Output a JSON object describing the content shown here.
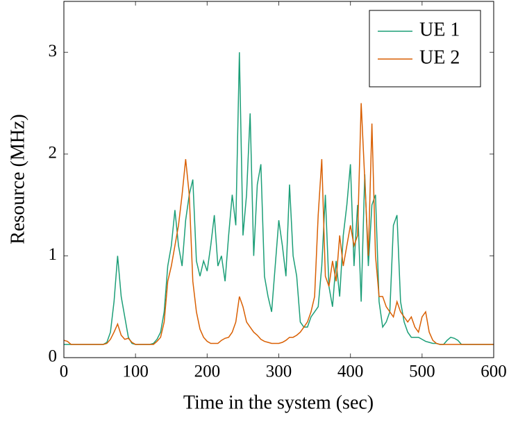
{
  "chart_data": {
    "type": "line",
    "xlabel": "Time in the system (sec)",
    "ylabel": "Resource (MHz)",
    "x": [
      0,
      5,
      10,
      15,
      20,
      25,
      30,
      35,
      40,
      45,
      50,
      55,
      60,
      65,
      70,
      75,
      80,
      85,
      90,
      95,
      100,
      105,
      110,
      115,
      120,
      125,
      130,
      135,
      140,
      145,
      150,
      155,
      160,
      165,
      170,
      175,
      180,
      185,
      190,
      195,
      200,
      205,
      210,
      215,
      220,
      225,
      230,
      235,
      240,
      245,
      250,
      255,
      260,
      265,
      270,
      275,
      280,
      285,
      290,
      295,
      300,
      305,
      310,
      315,
      320,
      325,
      330,
      335,
      340,
      345,
      350,
      355,
      360,
      365,
      370,
      375,
      380,
      385,
      390,
      395,
      400,
      405,
      410,
      415,
      420,
      425,
      430,
      435,
      440,
      445,
      450,
      455,
      460,
      465,
      470,
      475,
      480,
      485,
      490,
      495,
      500,
      505,
      510,
      515,
      520,
      525,
      530,
      535,
      540,
      545,
      550,
      555,
      560,
      565,
      570,
      575,
      580,
      585,
      590,
      595,
      600
    ],
    "series": [
      {
        "name": "UE 1",
        "color": "#1b9e77",
        "values": [
          0.13,
          0.13,
          0.13,
          0.13,
          0.13,
          0.13,
          0.13,
          0.13,
          0.13,
          0.13,
          0.13,
          0.13,
          0.15,
          0.25,
          0.55,
          1.0,
          0.6,
          0.4,
          0.2,
          0.14,
          0.13,
          0.13,
          0.13,
          0.13,
          0.13,
          0.14,
          0.18,
          0.25,
          0.45,
          0.9,
          1.1,
          1.45,
          1.1,
          0.9,
          1.35,
          1.6,
          1.75,
          0.95,
          0.8,
          0.95,
          0.85,
          1.1,
          1.4,
          0.9,
          1.0,
          0.75,
          1.2,
          1.6,
          1.3,
          3.0,
          1.2,
          1.6,
          2.4,
          1.0,
          1.7,
          1.9,
          0.8,
          0.6,
          0.45,
          0.9,
          1.35,
          1.1,
          0.8,
          1.7,
          1.0,
          0.8,
          0.35,
          0.3,
          0.3,
          0.4,
          0.45,
          0.5,
          0.9,
          1.6,
          0.7,
          0.5,
          0.95,
          0.6,
          1.2,
          1.5,
          1.9,
          0.9,
          1.5,
          0.55,
          1.8,
          0.9,
          1.5,
          1.6,
          0.55,
          0.3,
          0.35,
          0.45,
          1.3,
          1.4,
          0.55,
          0.35,
          0.25,
          0.2,
          0.2,
          0.2,
          0.18,
          0.16,
          0.15,
          0.14,
          0.14,
          0.13,
          0.13,
          0.17,
          0.2,
          0.19,
          0.17,
          0.13,
          0.13,
          0.13,
          0.13,
          0.13,
          0.13,
          0.13,
          0.13,
          0.13,
          0.13
        ]
      },
      {
        "name": "UE 2",
        "color": "#d95f02",
        "values": [
          0.17,
          0.16,
          0.13,
          0.13,
          0.13,
          0.13,
          0.13,
          0.13,
          0.13,
          0.13,
          0.13,
          0.13,
          0.14,
          0.18,
          0.25,
          0.33,
          0.22,
          0.18,
          0.19,
          0.15,
          0.13,
          0.13,
          0.13,
          0.13,
          0.13,
          0.13,
          0.16,
          0.2,
          0.35,
          0.75,
          0.9,
          1.1,
          1.3,
          1.6,
          1.95,
          1.6,
          0.75,
          0.45,
          0.28,
          0.2,
          0.16,
          0.14,
          0.14,
          0.14,
          0.17,
          0.19,
          0.2,
          0.25,
          0.35,
          0.6,
          0.5,
          0.35,
          0.3,
          0.25,
          0.22,
          0.18,
          0.16,
          0.15,
          0.14,
          0.14,
          0.14,
          0.15,
          0.17,
          0.2,
          0.2,
          0.22,
          0.25,
          0.3,
          0.35,
          0.45,
          0.6,
          1.4,
          1.95,
          0.8,
          0.7,
          0.95,
          0.75,
          1.2,
          0.9,
          1.1,
          1.3,
          1.1,
          1.2,
          2.5,
          1.75,
          1.0,
          2.3,
          1.0,
          0.6,
          0.6,
          0.5,
          0.45,
          0.4,
          0.55,
          0.45,
          0.4,
          0.35,
          0.4,
          0.3,
          0.25,
          0.4,
          0.45,
          0.25,
          0.17,
          0.14,
          0.13,
          0.13,
          0.13,
          0.13,
          0.13,
          0.13,
          0.13,
          0.13,
          0.13,
          0.13,
          0.13,
          0.13,
          0.13,
          0.13,
          0.13,
          0.13
        ]
      }
    ],
    "xlim": [
      0,
      600
    ],
    "xticks": [
      0,
      100,
      200,
      300,
      400,
      500,
      600
    ],
    "ylim": [
      0,
      3.5
    ],
    "yticks": [
      0,
      1,
      2,
      3
    ],
    "grid": false,
    "legend": "northeast"
  }
}
